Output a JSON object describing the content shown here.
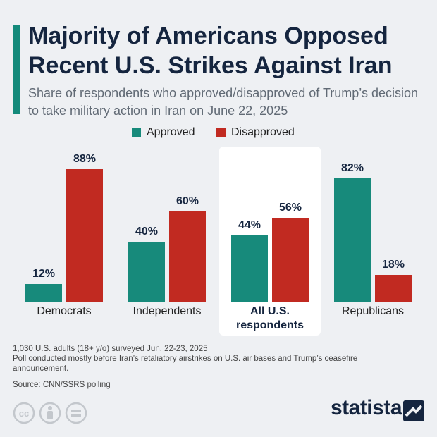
{
  "chart_data": {
    "type": "bar",
    "title": "Majority of Americans Opposed Recent U.S. Strikes Against Iran",
    "subtitle": "Share of respondents who approved/disapproved of Trump’s decision to take military action in Iran on June 22, 2025",
    "categories": [
      "Democrats",
      "Independents",
      "All U.S. respondents",
      "Republicans"
    ],
    "highlight_index": 2,
    "series": [
      {
        "name": "Approved",
        "color": "#178a7b",
        "values": [
          12,
          40,
          44,
          82
        ],
        "value_labels": [
          "12%",
          "40%",
          "44%",
          "82%"
        ]
      },
      {
        "name": "Disapproved",
        "color": "#c12a21",
        "values": [
          88,
          60,
          56,
          18
        ],
        "value_labels": [
          "88%",
          "60%",
          "56%",
          "18%"
        ]
      }
    ],
    "notes": [
      "1,030 U.S. adults (18+ y/o) surveyed Jun. 22-23, 2025",
      "Poll conducted mostly before Iran’s retaliatory airstrikes on U.S. air bases and Trump’s ceasefire announcement.",
      "Source: CNN/SSRS polling"
    ],
    "logo": "statista"
  }
}
